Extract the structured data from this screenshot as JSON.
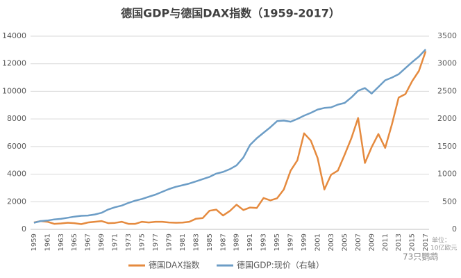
{
  "chart_data": {
    "type": "line",
    "title": "德国GDP与德国DAX指数（1959-2017）",
    "categories": [
      "1959",
      null,
      "1961",
      null,
      "1963",
      null,
      "1965",
      null,
      "1967",
      null,
      "1969",
      null,
      "1971",
      null,
      "1973",
      null,
      "1975",
      null,
      "1977",
      null,
      "1979",
      null,
      "1981",
      null,
      "1983",
      null,
      "1985",
      null,
      "1987",
      null,
      "1989",
      null,
      "1991",
      null,
      "1993",
      null,
      "1995",
      null,
      "1997",
      null,
      "1999",
      null,
      "2001",
      null,
      "2003",
      null,
      "2005",
      null,
      "2007",
      null,
      "2009",
      null,
      "2011",
      null,
      "2013",
      null,
      "2015",
      null,
      "2017"
    ],
    "series": [
      {
        "name": "德国DAX指数",
        "color": "#E58A3E",
        "values": [
          500,
          600,
          550,
          400,
          430,
          480,
          450,
          380,
          500,
          550,
          600,
          450,
          470,
          550,
          400,
          400,
          550,
          500,
          550,
          550,
          500,
          480,
          490,
          550,
          770,
          820,
          1350,
          1430,
          1000,
          1330,
          1790,
          1400,
          1580,
          1550,
          2270,
          2100,
          2250,
          2890,
          4250,
          5000,
          6960,
          6430,
          5160,
          2890,
          3960,
          4260,
          5410,
          6600,
          8070,
          4810,
          5960,
          6910,
          5900,
          7610,
          9550,
          9800,
          10740,
          11480,
          12900
        ]
      },
      {
        "name": "德国GDP:现价（右轴）",
        "color": "#6C9DC6",
        "axis": "y2",
        "values": [
          120,
          150,
          160,
          180,
          190,
          210,
          230,
          245,
          250,
          270,
          300,
          360,
          400,
          430,
          480,
          520,
          550,
          590,
          630,
          680,
          730,
          770,
          800,
          830,
          870,
          910,
          950,
          1010,
          1040,
          1090,
          1160,
          1300,
          1530,
          1650,
          1750,
          1850,
          1960,
          1970,
          1950,
          2000,
          2060,
          2110,
          2170,
          2200,
          2210,
          2260,
          2290,
          2390,
          2510,
          2560,
          2460,
          2580,
          2700,
          2750,
          2810,
          2920,
          3030,
          3130,
          3260
        ]
      }
    ],
    "ylim": [
      0,
      14000
    ],
    "yticks": [
      0,
      2000,
      4000,
      6000,
      8000,
      10000,
      12000,
      14000
    ],
    "y2lim": [
      0,
      3500
    ],
    "y2ticks": [
      0,
      500,
      1000,
      1500,
      2000,
      2500,
      3000,
      3500
    ],
    "grid": true,
    "legend": "bottom",
    "annotations": [
      "单位：",
      "10亿欧元"
    ],
    "watermark": "73只鹦鹉"
  }
}
